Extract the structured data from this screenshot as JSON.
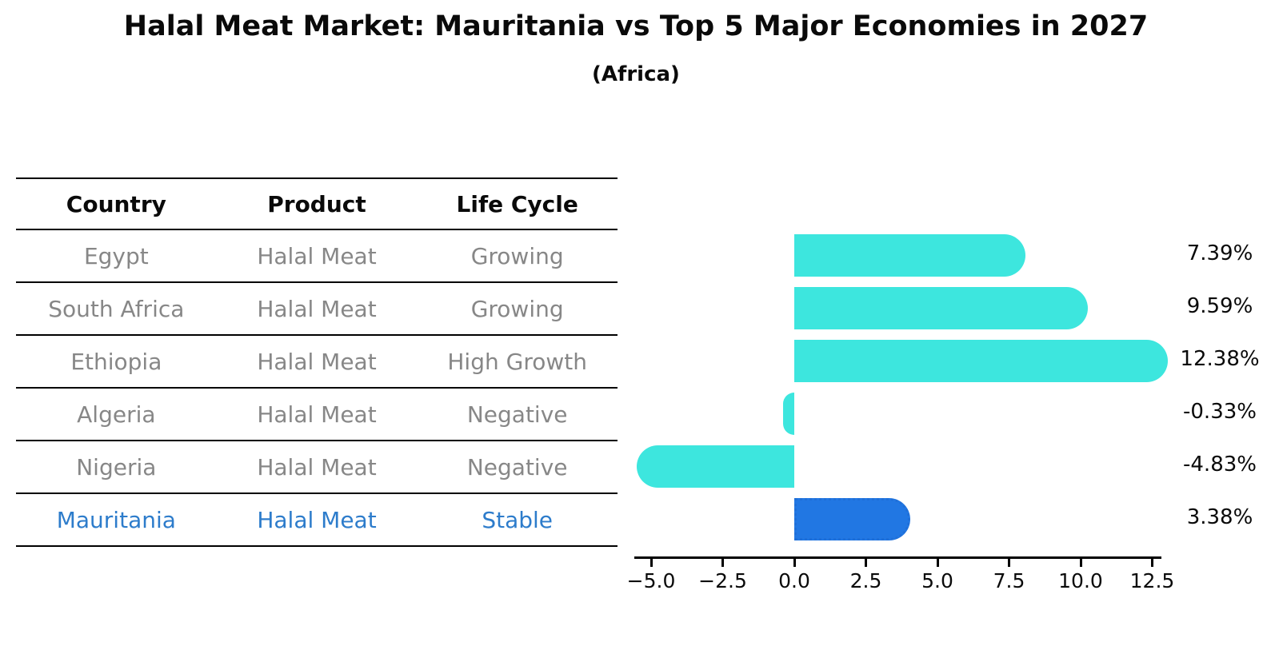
{
  "title": "Halal Meat Market: Mauritania vs Top 5 Major Economies in 2027",
  "subtitle": "(Africa)",
  "table": {
    "headers": [
      "Country",
      "Product",
      "Life Cycle"
    ],
    "rows": [
      {
        "cells": [
          "Egypt",
          "Halal Meat",
          "Growing"
        ],
        "highlight": false
      },
      {
        "cells": [
          "South Africa",
          "Halal Meat",
          "Growing"
        ],
        "highlight": false
      },
      {
        "cells": [
          "Ethiopia",
          "Halal Meat",
          "High Growth"
        ],
        "highlight": false
      },
      {
        "cells": [
          "Algeria",
          "Halal Meat",
          "Negative"
        ],
        "highlight": false
      },
      {
        "cells": [
          "Nigeria",
          "Halal Meat",
          "Negative"
        ],
        "highlight": false
      },
      {
        "cells": [
          "Mauritania",
          "Halal Meat",
          "Stable"
        ],
        "highlight": true
      }
    ]
  },
  "chart_data": {
    "type": "bar",
    "orientation": "horizontal",
    "categories": [
      "Egypt",
      "South Africa",
      "Ethiopia",
      "Algeria",
      "Nigeria",
      "Mauritania"
    ],
    "values": [
      7.39,
      9.59,
      12.38,
      -0.33,
      -4.83,
      3.38
    ],
    "value_labels": [
      "7.39%",
      "9.59%",
      "12.38%",
      "-0.33%",
      "-4.83%",
      "3.38%"
    ],
    "highlight_index": 5,
    "x_ticks": [
      -5.0,
      -2.5,
      0.0,
      2.5,
      5.0,
      7.5,
      10.0,
      12.5
    ],
    "x_tick_labels": [
      "−5.0",
      "−2.5",
      "0.0",
      "2.5",
      "5.0",
      "7.5",
      "10.0",
      "12.5"
    ],
    "xlim": [
      -5.6,
      12.8
    ],
    "grid": false,
    "legend": null,
    "title": "Halal Meat Market: Mauritania vs Top 5 Major Economies in 2027",
    "subtitle": "(Africa)",
    "xlabel": "",
    "ylabel": ""
  },
  "colors": {
    "bar": "#3de6de",
    "highlight_bar": "#2177e3",
    "highlight_bar_border": "#1f6fd8",
    "muted_text": "#878787",
    "highlight_text": "#2d7ccb",
    "axis": "#000000"
  }
}
